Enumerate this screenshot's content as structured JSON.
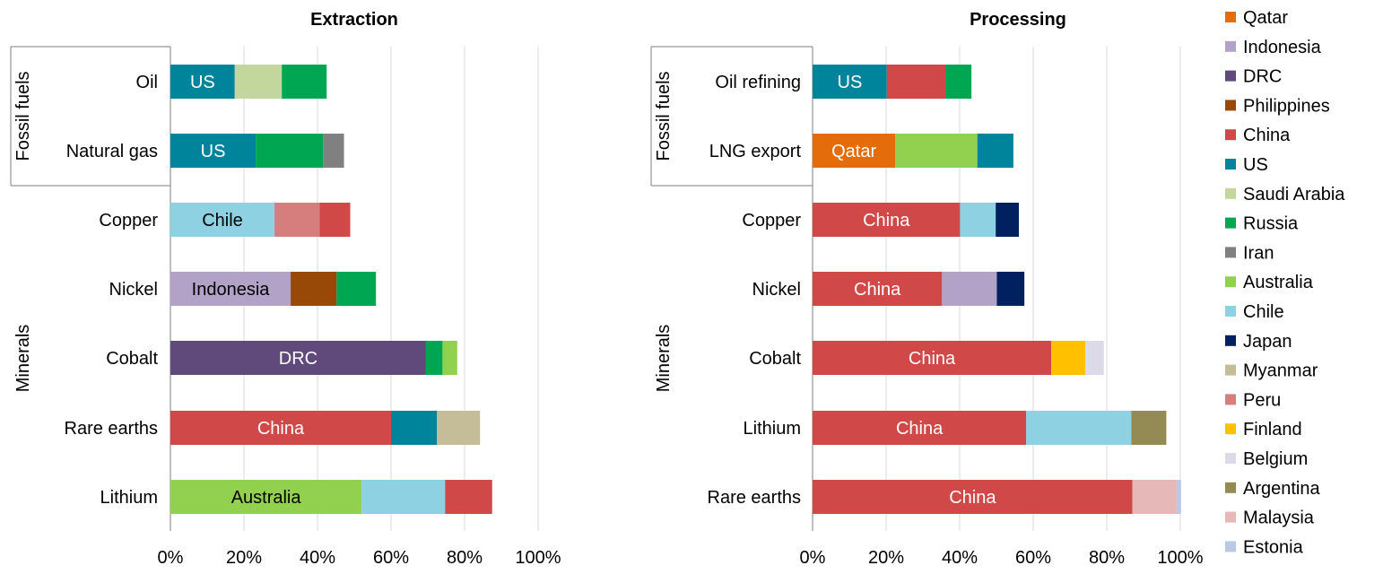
{
  "colors": {
    "Qatar": "#E46C0A",
    "Indonesia": "#B3A2C7",
    "DRC": "#604A7B",
    "Philippines": "#984807",
    "China": "#D04848",
    "US": "#00849B",
    "Saudi Arabia": "#C3D69B",
    "Russia": "#00A651",
    "Iran": "#808080",
    "Australia": "#92D050",
    "Chile": "#8ED1E2",
    "Japan": "#002060",
    "Myanmar": "#C4BD97",
    "Peru": "#D67E7E",
    "Finland": "#FFC000",
    "Belgium": "#DCDAE8",
    "Argentina": "#948A54",
    "Malaysia": "#E6B9B8",
    "Estonia": "#B9C9E6"
  },
  "chart_data": [
    {
      "type": "bar",
      "orientation": "horizontal",
      "stacked": true,
      "title": "Extraction",
      "xlim": [
        0,
        100
      ],
      "x_ticks": [
        "0%",
        "20%",
        "40%",
        "60%",
        "80%",
        "100%"
      ],
      "grid": true,
      "groups": [
        {
          "label": "Fossil fuels",
          "categories": [
            "Oil",
            "Natural gas"
          ]
        },
        {
          "label": "Minerals",
          "categories": [
            "Copper",
            "Nickel",
            "Cobalt",
            "Rare earths",
            "Lithium"
          ]
        }
      ],
      "categories": [
        "Oil",
        "Natural gas",
        "Copper",
        "Nickel",
        "Cobalt",
        "Rare earths",
        "Lithium"
      ],
      "bars": [
        {
          "category": "Oil",
          "segments": [
            {
              "country": "US",
              "value": 17.5,
              "label": "US"
            },
            {
              "country": "Saudi Arabia",
              "value": 12.8
            },
            {
              "country": "Russia",
              "value": 12.2
            }
          ]
        },
        {
          "category": "Natural gas",
          "segments": [
            {
              "country": "US",
              "value": 23.2,
              "label": "US"
            },
            {
              "country": "Russia",
              "value": 18.3
            },
            {
              "country": "Iran",
              "value": 5.7
            }
          ]
        },
        {
          "category": "Copper",
          "segments": [
            {
              "country": "Chile",
              "value": 28.3,
              "label": "Chile"
            },
            {
              "country": "Peru",
              "value": 12.3
            },
            {
              "country": "China",
              "value": 8.3
            }
          ]
        },
        {
          "category": "Nickel",
          "segments": [
            {
              "country": "Indonesia",
              "value": 32.7,
              "label": "Indonesia"
            },
            {
              "country": "Philippines",
              "value": 12.5
            },
            {
              "country": "Russia",
              "value": 10.7
            }
          ]
        },
        {
          "category": "Cobalt",
          "segments": [
            {
              "country": "DRC",
              "value": 69.5,
              "label": "DRC"
            },
            {
              "country": "Russia",
              "value": 4.5
            },
            {
              "country": "Australia",
              "value": 4.0
            }
          ]
        },
        {
          "category": "Rare earths",
          "segments": [
            {
              "country": "China",
              "value": 60.0,
              "label": "China"
            },
            {
              "country": "US",
              "value": 12.5
            },
            {
              "country": "Myanmar",
              "value": 11.7
            }
          ]
        },
        {
          "category": "Lithium",
          "segments": [
            {
              "country": "Australia",
              "value": 52.0,
              "label": "Australia"
            },
            {
              "country": "Chile",
              "value": 22.7
            },
            {
              "country": "China",
              "value": 12.8
            }
          ]
        }
      ]
    },
    {
      "type": "bar",
      "orientation": "horizontal",
      "stacked": true,
      "title": "Processing",
      "xlim": [
        0,
        100
      ],
      "x_ticks": [
        "0%",
        "20%",
        "40%",
        "60%",
        "80%",
        "100%"
      ],
      "grid": true,
      "groups": [
        {
          "label": "Fossil fuels",
          "categories": [
            "Oil refining",
            "LNG export"
          ]
        },
        {
          "label": "Minerals",
          "categories": [
            "Copper",
            "Nickel",
            "Cobalt",
            "Lithium",
            "Rare earths"
          ]
        }
      ],
      "categories": [
        "Oil refining",
        "LNG export",
        "Copper",
        "Nickel",
        "Cobalt",
        "Lithium",
        "Rare earths"
      ],
      "bars": [
        {
          "category": "Oil refining",
          "segments": [
            {
              "country": "US",
              "value": 20.2,
              "label": "US"
            },
            {
              "country": "China",
              "value": 15.9
            },
            {
              "country": "Russia",
              "value": 7.1
            }
          ]
        },
        {
          "category": "LNG export",
          "segments": [
            {
              "country": "Qatar",
              "value": 22.5,
              "label": "Qatar"
            },
            {
              "country": "Australia",
              "value": 22.3
            },
            {
              "country": "US",
              "value": 9.8
            }
          ]
        },
        {
          "category": "Copper",
          "segments": [
            {
              "country": "China",
              "value": 40.1,
              "label": "China"
            },
            {
              "country": "Chile",
              "value": 9.7
            },
            {
              "country": "Japan",
              "value": 6.3
            }
          ]
        },
        {
          "category": "Nickel",
          "segments": [
            {
              "country": "China",
              "value": 35.2,
              "label": "China"
            },
            {
              "country": "Indonesia",
              "value": 14.9
            },
            {
              "country": "Japan",
              "value": 7.5
            }
          ]
        },
        {
          "category": "Cobalt",
          "segments": [
            {
              "country": "China",
              "value": 64.9,
              "label": "China"
            },
            {
              "country": "Finland",
              "value": 9.3
            },
            {
              "country": "Belgium",
              "value": 5.0
            }
          ]
        },
        {
          "category": "Lithium",
          "segments": [
            {
              "country": "China",
              "value": 58.1,
              "label": "China"
            },
            {
              "country": "Chile",
              "value": 28.6
            },
            {
              "country": "Argentina",
              "value": 9.5
            }
          ]
        },
        {
          "category": "Rare earths",
          "segments": [
            {
              "country": "China",
              "value": 87.0,
              "label": "China"
            },
            {
              "country": "Malaysia",
              "value": 12.0
            },
            {
              "country": "Estonia",
              "value": 1.2
            }
          ]
        }
      ]
    }
  ],
  "legend": {
    "placement": "right",
    "items": [
      "Qatar",
      "Indonesia",
      "DRC",
      "Philippines",
      "China",
      "US",
      "Saudi Arabia",
      "Russia",
      "Iran",
      "Australia",
      "Chile",
      "Japan",
      "Myanmar",
      "Peru",
      "Finland",
      "Belgium",
      "Argentina",
      "Malaysia",
      "Estonia"
    ]
  }
}
